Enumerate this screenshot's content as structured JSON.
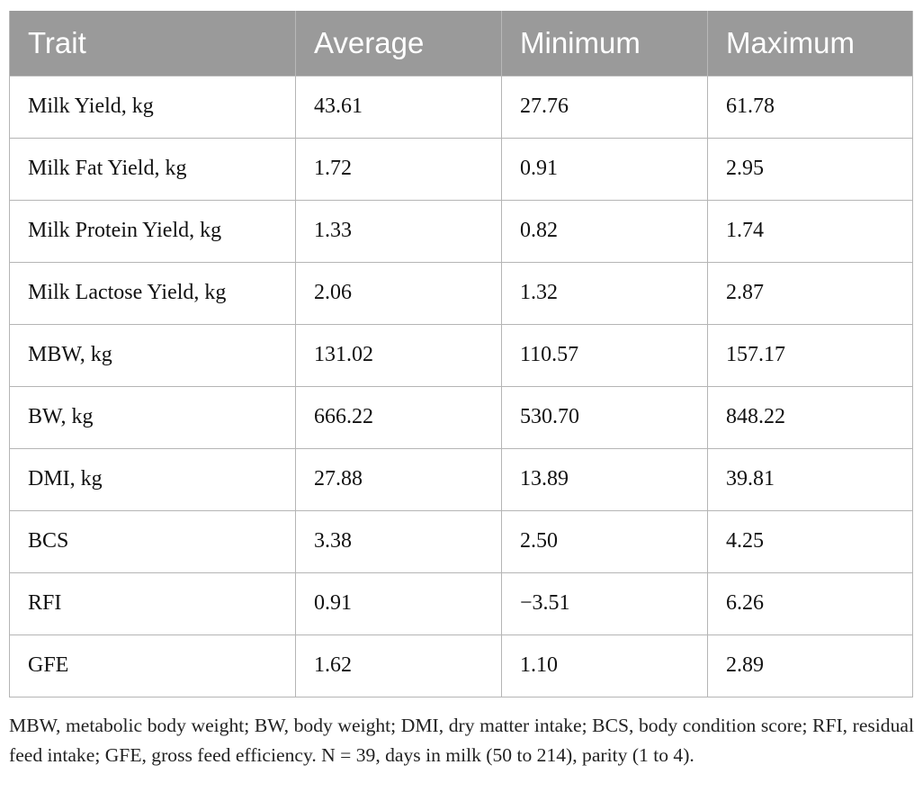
{
  "table": {
    "headers": [
      "Trait",
      "Average",
      "Minimum",
      "Maximum"
    ],
    "rows": [
      [
        "Milk Yield, kg",
        "43.61",
        "27.76",
        "61.78"
      ],
      [
        "Milk Fat Yield, kg",
        "1.72",
        "0.91",
        "2.95"
      ],
      [
        "Milk Protein Yield, kg",
        "1.33",
        "0.82",
        "1.74"
      ],
      [
        "Milk Lactose Yield, kg",
        "2.06",
        "1.32",
        "2.87"
      ],
      [
        "MBW, kg",
        "131.02",
        "110.57",
        "157.17"
      ],
      [
        "BW, kg",
        "666.22",
        "530.70",
        "848.22"
      ],
      [
        "DMI, kg",
        "27.88",
        "13.89",
        "39.81"
      ],
      [
        "BCS",
        "3.38",
        "2.50",
        "4.25"
      ],
      [
        "RFI",
        "0.91",
        "−3.51",
        "6.26"
      ],
      [
        "GFE",
        "1.62",
        "1.10",
        "2.89"
      ]
    ]
  },
  "footnote": "MBW, metabolic body weight; BW, body weight; DMI, dry matter intake; BCS, body condition score; RFI, residual feed intake; GFE, gross feed efficiency. N = 39, days in milk (50 to 214), parity (1 to 4).",
  "colors": {
    "header_background": "#9a9a9a",
    "header_text": "#ffffff",
    "grid_lines": "#b5b5b5"
  }
}
